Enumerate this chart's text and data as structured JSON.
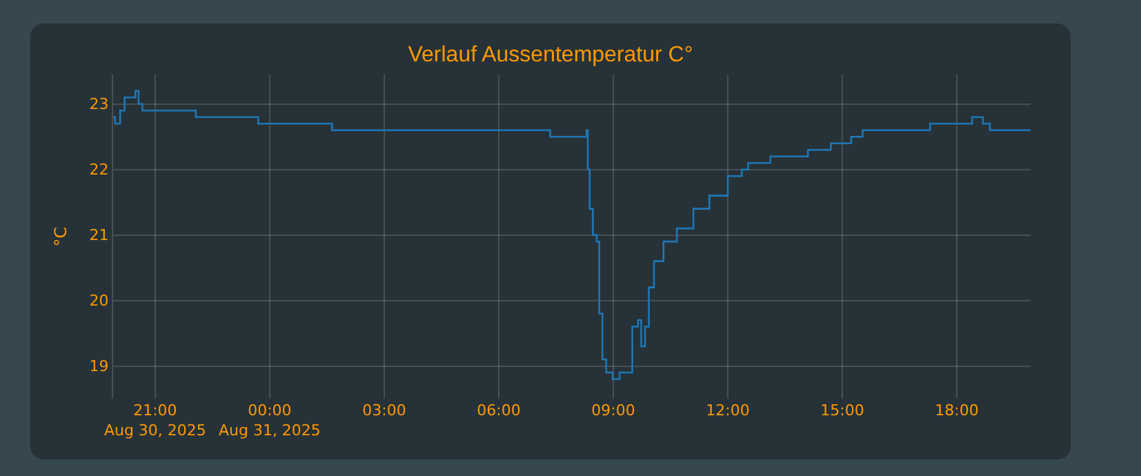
{
  "chart_data": {
    "type": "step",
    "title": "Verlauf Aussentemperatur C°",
    "ylabel": "°C",
    "grid": true,
    "x": [
      "2025-08-30T19:54",
      "2025-08-30T19:57",
      "2025-08-30T20:05",
      "2025-08-30T20:12",
      "2025-08-30T20:29",
      "2025-08-30T20:34",
      "2025-08-30T20:40",
      "2025-08-30T22:04",
      "2025-08-30T23:42",
      "2025-08-31T01:38",
      "2025-08-31T07:21",
      "2025-08-31T08:18",
      "2025-08-31T08:20",
      "2025-08-31T08:23",
      "2025-08-31T08:28",
      "2025-08-31T08:34",
      "2025-08-31T08:38",
      "2025-08-31T08:43",
      "2025-08-31T08:49",
      "2025-08-31T08:59",
      "2025-08-31T09:10",
      "2025-08-31T09:30",
      "2025-08-31T09:39",
      "2025-08-31T09:44",
      "2025-08-31T09:50",
      "2025-08-31T09:56",
      "2025-08-31T10:04",
      "2025-08-31T10:19",
      "2025-08-31T10:40",
      "2025-08-31T11:06",
      "2025-08-31T11:31",
      "2025-08-31T12:00",
      "2025-08-31T12:22",
      "2025-08-31T12:32",
      "2025-08-31T13:07",
      "2025-08-31T14:06",
      "2025-08-31T14:42",
      "2025-08-31T15:14",
      "2025-08-31T15:32",
      "2025-08-31T17:18",
      "2025-08-31T18:24",
      "2025-08-31T18:41",
      "2025-08-31T18:52",
      "2025-08-31T19:56"
    ],
    "series": [
      {
        "color": "#1f77b4",
        "values": [
          22.8,
          22.7,
          22.9,
          23.1,
          23.2,
          23.0,
          22.9,
          22.8,
          22.7,
          22.6,
          22.5,
          22.6,
          22.0,
          21.4,
          21.0,
          20.9,
          19.8,
          19.1,
          18.9,
          18.8,
          18.9,
          19.6,
          19.7,
          19.3,
          19.6,
          20.2,
          20.6,
          20.9,
          21.1,
          21.4,
          21.6,
          21.9,
          22.0,
          22.1,
          22.2,
          22.3,
          22.4,
          22.5,
          22.6,
          22.7,
          22.8,
          22.7,
          22.6,
          22.6
        ]
      }
    ],
    "xlim": [
      "2025-08-30T19:54",
      "2025-08-31T19:56"
    ],
    "xticks": [
      {
        "value": "2025-08-30T21:00",
        "label": "21:00\nAug 30, 2025"
      },
      {
        "value": "2025-08-31T00:00",
        "label": "00:00\nAug 31, 2025"
      },
      {
        "value": "2025-08-31T03:00",
        "label": "03:00"
      },
      {
        "value": "2025-08-31T06:00",
        "label": "06:00"
      },
      {
        "value": "2025-08-31T09:00",
        "label": "09:00"
      },
      {
        "value": "2025-08-31T12:00",
        "label": "12:00"
      },
      {
        "value": "2025-08-31T15:00",
        "label": "15:00"
      },
      {
        "value": "2025-08-31T18:00",
        "label": "18:00"
      }
    ],
    "ylim": [
      18.5,
      23.45
    ],
    "yticks": [
      19,
      20,
      21,
      22,
      23
    ]
  }
}
